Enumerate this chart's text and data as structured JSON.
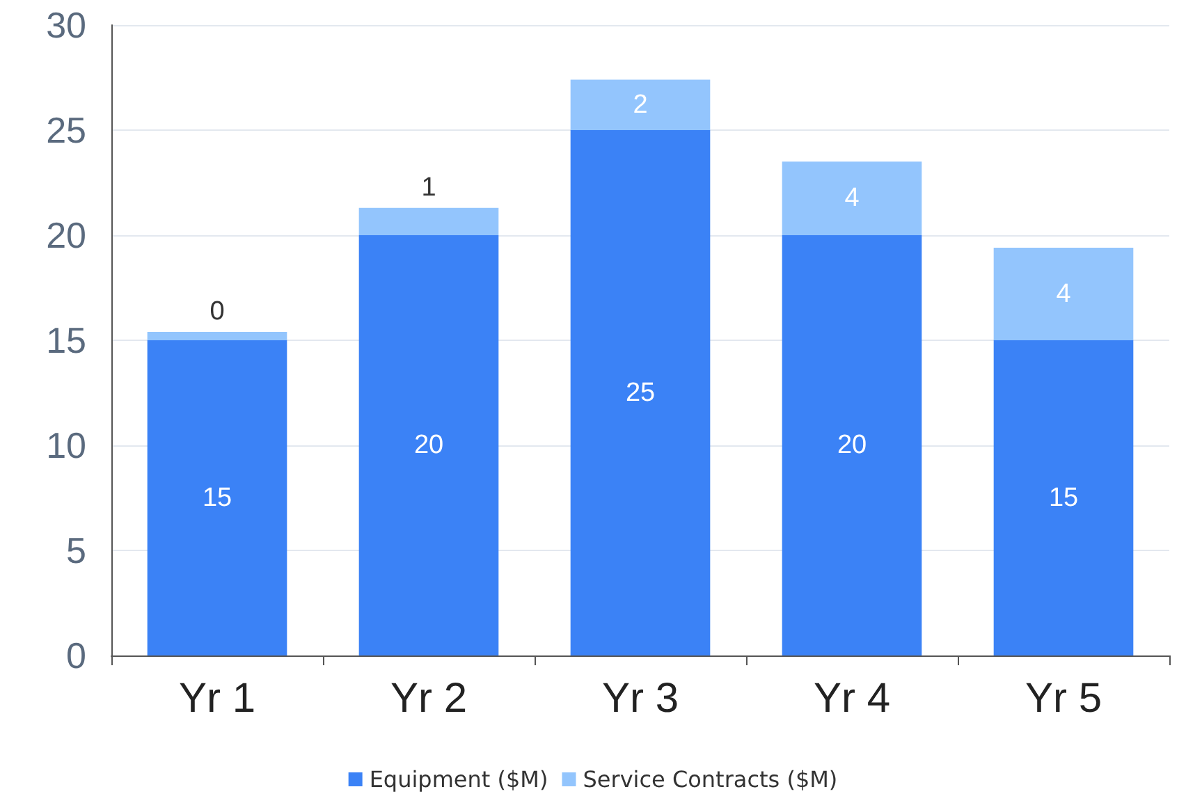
{
  "chart_data": {
    "type": "bar",
    "stacked": true,
    "categories": [
      "Yr 1",
      "Yr 2",
      "Yr 3",
      "Yr 4",
      "Yr 5"
    ],
    "series": [
      {
        "name": "Equipment ($M)",
        "color": "#3b82f6",
        "values": [
          15,
          20,
          25,
          20,
          15
        ],
        "value_labels": [
          "15",
          "20",
          "25",
          "20",
          "15"
        ]
      },
      {
        "name": "Service Contracts ($M)",
        "color": "#93c5fd",
        "values": [
          0.4,
          1.3,
          2.4,
          3.5,
          4.4
        ],
        "value_labels": [
          "0",
          "1",
          "2",
          "4",
          "4"
        ]
      }
    ],
    "ylim": [
      0,
      30
    ],
    "yticks": [
      0,
      5,
      10,
      15,
      20,
      25,
      30
    ],
    "grid": "y",
    "legend": "bottom"
  }
}
